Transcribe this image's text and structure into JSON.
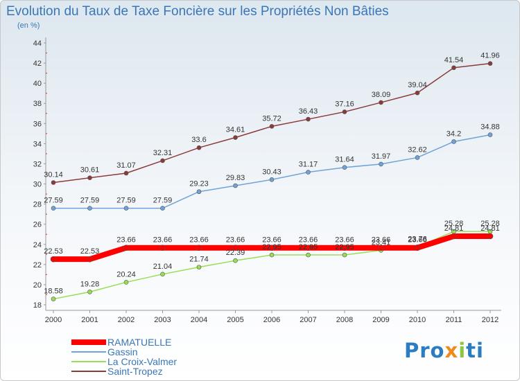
{
  "header": {
    "title": "Evolution du Taux de Taxe Foncière sur les Propriétés Non Bâties",
    "subtitle": "(en %)"
  },
  "logo": {
    "text": "Proxiti",
    "colors": [
      "#2c7cc2",
      "#f08a1c",
      "#8cc63f"
    ]
  },
  "chart_data": {
    "type": "line",
    "title": "Evolution du Taux de Taxe Foncière sur les Propriétés Non Bâties",
    "subtitle": "(en %)",
    "x": [
      2000,
      2001,
      2002,
      2003,
      2004,
      2005,
      2006,
      2007,
      2008,
      2009,
      2010,
      2011,
      2012
    ],
    "x_ticks": [
      "2000",
      "2001",
      "2002",
      "2003",
      "2004",
      "2005",
      "2006",
      "2007",
      "2008",
      "2009",
      "2010",
      "2011",
      "2012"
    ],
    "ylim": [
      18,
      44
    ],
    "y_ticks": [
      "18",
      "20",
      "22",
      "24",
      "26",
      "28",
      "30",
      "32",
      "34",
      "36",
      "38",
      "40",
      "42",
      "44"
    ],
    "grid": false,
    "legend_position": "bottom-left",
    "series": [
      {
        "name": "RAMATUELLE",
        "color": "#ff0000",
        "values": [
          22.53,
          22.53,
          23.66,
          23.66,
          23.66,
          23.66,
          23.66,
          23.66,
          23.66,
          23.66,
          23.66,
          24.81,
          24.81
        ]
      },
      {
        "name": "Gassin",
        "color": "#6fa3d8",
        "values": [
          27.59,
          27.59,
          27.59,
          27.59,
          29.23,
          29.83,
          30.43,
          31.17,
          31.64,
          31.97,
          32.62,
          34.2,
          34.88
        ]
      },
      {
        "name": "La Croix-Valmer",
        "color": "#99dd55",
        "values": [
          18.58,
          19.28,
          20.24,
          21.04,
          21.74,
          22.39,
          22.95,
          22.95,
          22.95,
          23.41,
          23.76,
          25.28,
          25.28
        ]
      },
      {
        "name": "Saint-Tropez",
        "color": "#8b3a3a",
        "values": [
          30.14,
          30.61,
          31.07,
          32.31,
          33.6,
          34.61,
          35.72,
          36.43,
          37.16,
          38.09,
          39.04,
          41.54,
          41.96
        ]
      }
    ],
    "point_labels": [
      [
        "22.53",
        "22.53",
        "23.66",
        "23.66",
        "23.66",
        "23.66",
        "23.66",
        "23.66",
        "23.66",
        "23.66",
        "23.66",
        "24.81",
        "24.81"
      ],
      [
        "27.59",
        "27.59",
        "27.59",
        "27.59",
        "29.23",
        "29.83",
        "30.43",
        "31.17",
        "31.64",
        "31.97",
        "32.62",
        "34.2",
        "34.88"
      ],
      [
        "18.58",
        "19.28",
        "20.24",
        "21.04",
        "21.74",
        "22.39",
        "22.95",
        "22.95",
        "22.95",
        "23.41",
        "23.76",
        "25.28",
        "25.28"
      ],
      [
        "30.14",
        "30.61",
        "31.07",
        "32.31",
        "33.6",
        "34.61",
        "35.72",
        "36.43",
        "37.16",
        "38.09",
        "39.04",
        "41.54",
        "41.96"
      ]
    ]
  }
}
